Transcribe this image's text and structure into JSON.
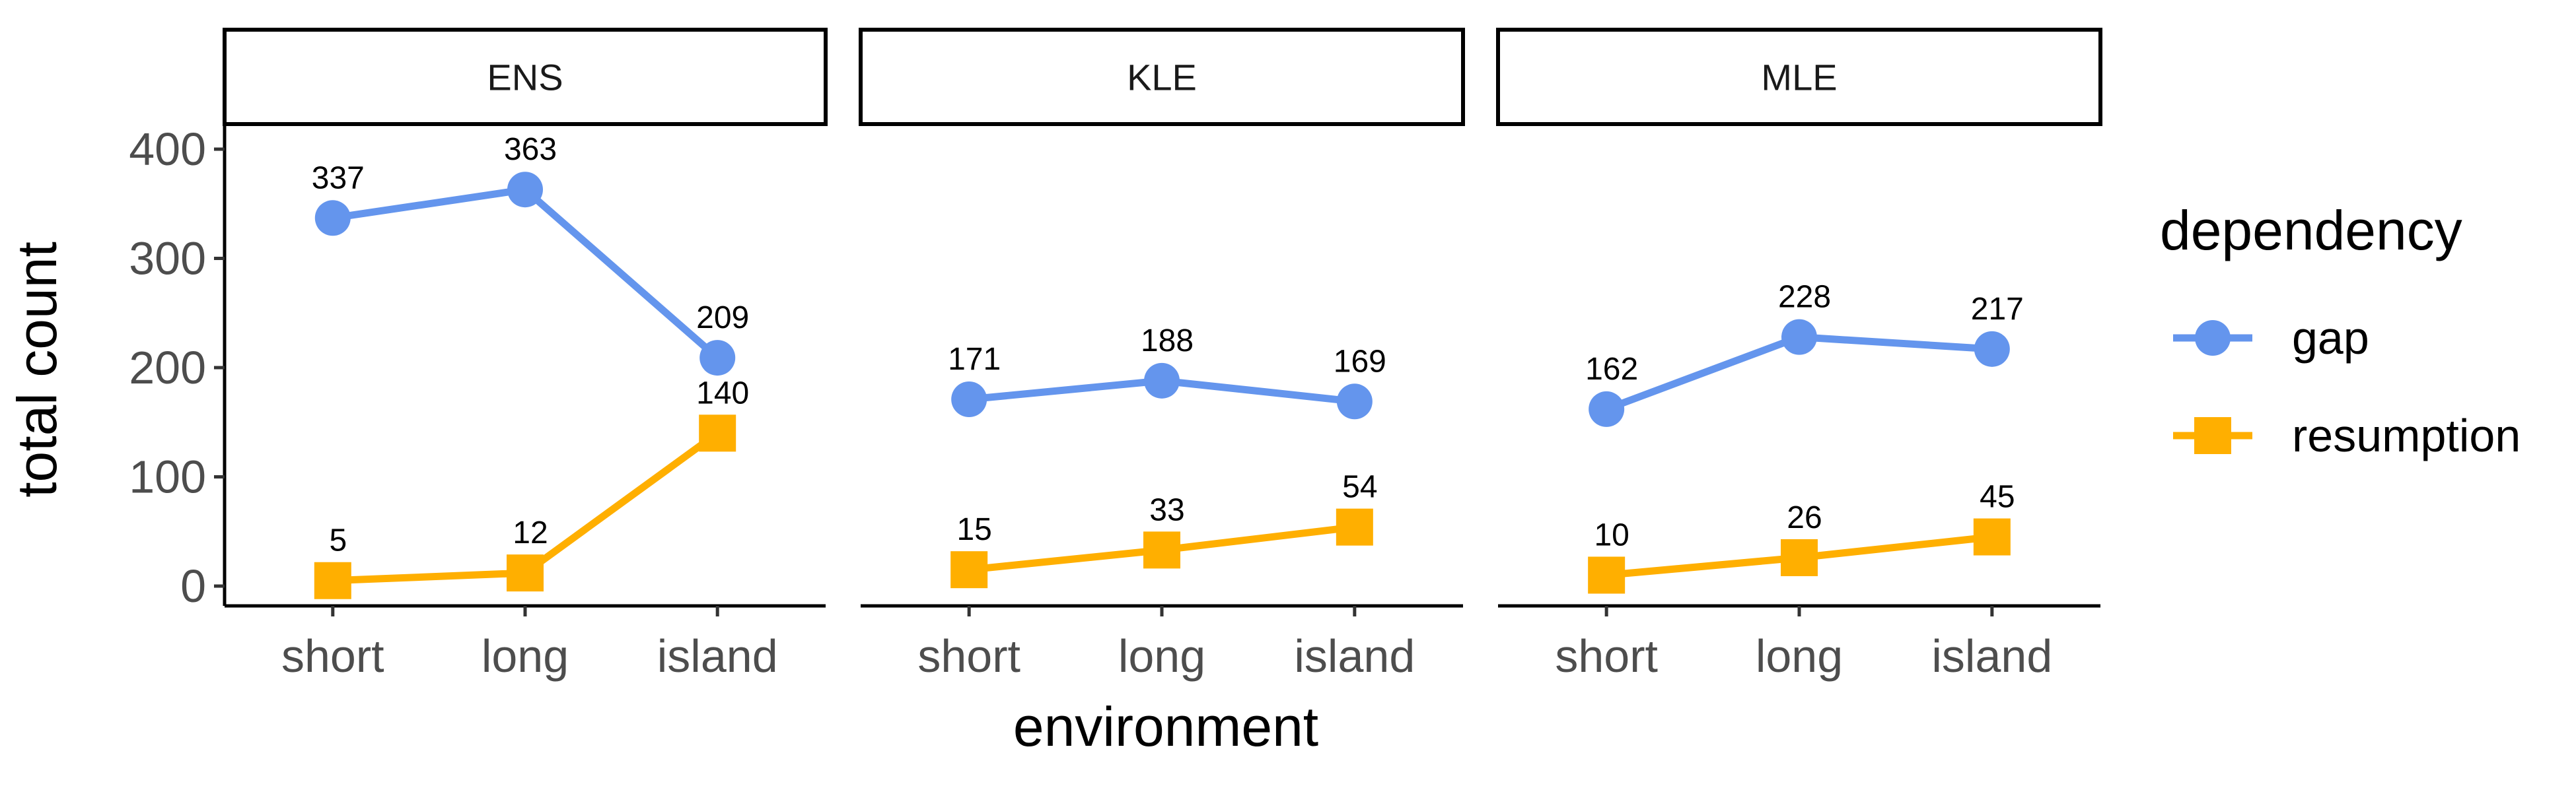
{
  "chart_data": {
    "type": "line",
    "facet_by": "group",
    "facets": [
      "ENS",
      "KLE",
      "MLE"
    ],
    "categories": [
      "short",
      "long",
      "island"
    ],
    "xlabel": "environment",
    "ylabel": "total count",
    "ylim": [
      0,
      400
    ],
    "yticks": [
      0,
      100,
      200,
      300,
      400
    ],
    "grid": false,
    "legend": {
      "title": "dependency",
      "placement": "right",
      "entries": [
        "gap",
        "resumption"
      ]
    },
    "series": [
      {
        "name": "gap",
        "color": "#6495ED",
        "marker": "circle",
        "values": {
          "ENS": [
            337,
            363,
            209
          ],
          "KLE": [
            171,
            188,
            169
          ],
          "MLE": [
            162,
            228,
            217
          ]
        },
        "labels": {
          "ENS": [
            "337",
            "363",
            "209"
          ],
          "KLE": [
            "171",
            "188",
            "169"
          ],
          "MLE": [
            "162",
            "228",
            "217"
          ]
        }
      },
      {
        "name": "resumption",
        "color": "#FFAF00",
        "marker": "square",
        "values": {
          "ENS": [
            5,
            12,
            140
          ],
          "KLE": [
            15,
            33,
            54
          ],
          "MLE": [
            10,
            26,
            45
          ]
        },
        "labels": {
          "ENS": [
            "5",
            "12",
            "140"
          ],
          "KLE": [
            "15",
            "33",
            "54"
          ],
          "MLE": [
            "10",
            "26",
            "45"
          ]
        }
      }
    ]
  }
}
